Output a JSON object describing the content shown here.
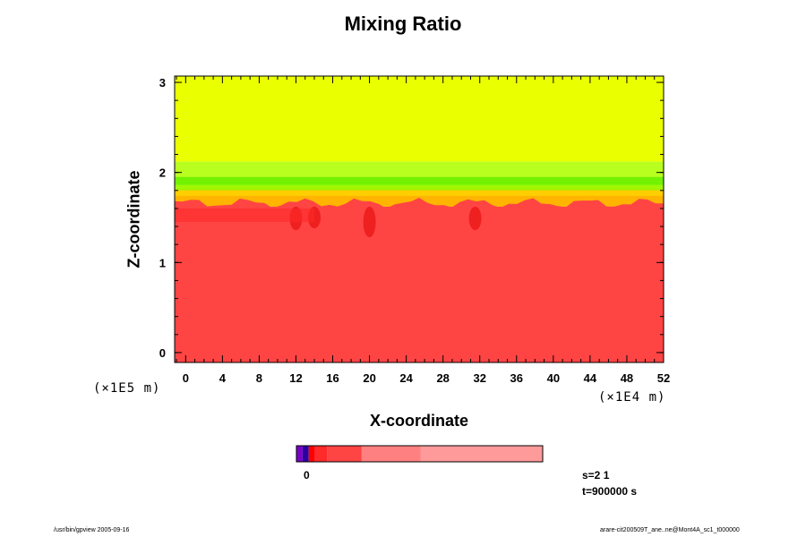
{
  "chart_data": {
    "type": "heatmap",
    "title": "Mixing Ratio",
    "xlabel": "X-coordinate",
    "ylabel": "Z-coordinate",
    "x_unit": "(×1E4 m)",
    "y_unit": "(×1E5 m)",
    "xlim": [
      -1.2,
      52
    ],
    "ylim": [
      -0.11,
      3.07
    ],
    "x_ticks": [
      0,
      4,
      8,
      12,
      16,
      20,
      24,
      28,
      32,
      36,
      40,
      44,
      48,
      52
    ],
    "y_ticks": [
      0,
      1,
      2,
      3
    ],
    "layers": [
      {
        "name": "upper",
        "z_from": 2.12,
        "z_to": 3.07,
        "color": "#eaff00"
      },
      {
        "name": "transition",
        "z_from": 1.83,
        "z_to": 2.12,
        "color": "#b8ff20"
      },
      {
        "name": "mixing-band",
        "z_from": 1.62,
        "z_to": 1.83,
        "color": "#ffb400"
      },
      {
        "name": "lower",
        "z_from": -0.11,
        "z_to": 1.62,
        "color": "#ff4444"
      }
    ],
    "colorbar": {
      "label": "0",
      "segments": [
        "#7a00c8",
        "#2a00a0",
        "#ff0000",
        "#ff2a2a",
        "#ff4444",
        "#ff8080",
        "#ff9090",
        "#ff9a9a"
      ]
    },
    "annotations": {
      "s": "s=2 1",
      "t": "t=900000 s"
    }
  },
  "footer": {
    "left": "/usr/bin/gpview 2005-09-16",
    "right": "arare-cit200509T_ane..ne@Mont4A_sc1_t000000"
  }
}
